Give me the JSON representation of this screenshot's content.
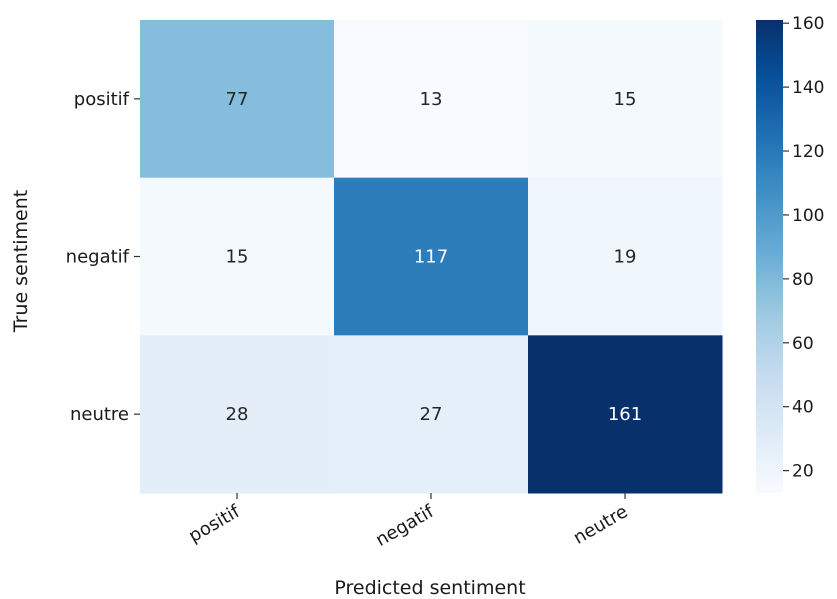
{
  "chart_data": {
    "type": "heatmap",
    "title": "",
    "xlabel": "Predicted sentiment",
    "ylabel": "True sentiment",
    "x_categories": [
      "positif",
      "negatif",
      "neutre"
    ],
    "y_categories": [
      "positif",
      "negatif",
      "neutre"
    ],
    "values": [
      [
        77,
        13,
        15
      ],
      [
        15,
        117,
        19
      ],
      [
        28,
        27,
        161
      ]
    ],
    "colormap": "Blues",
    "vmin": 13,
    "vmax": 161,
    "colorbar_ticks": [
      20,
      40,
      60,
      80,
      100,
      120,
      140,
      160
    ],
    "x_tick_rotation_deg": 30,
    "legend": "colorbar-right"
  }
}
